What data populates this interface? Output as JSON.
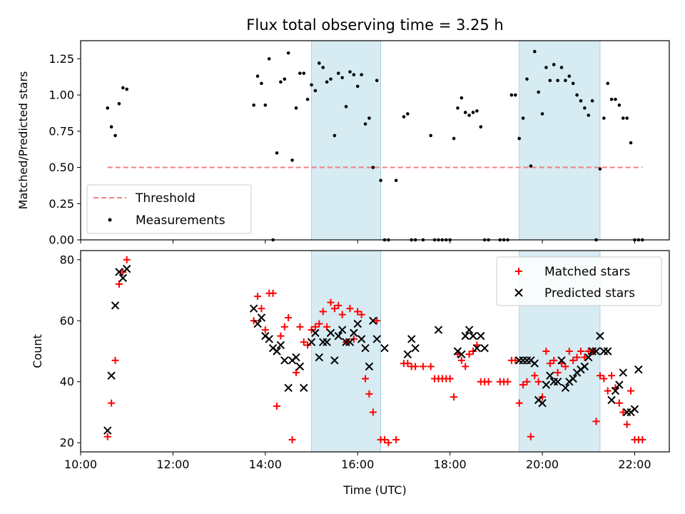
{
  "chart_data": [
    {
      "type": "scatter",
      "title": "Flux total observing time = 3.25 h",
      "xlabel": "",
      "ylabel": "Matched/Predicted stars",
      "xlim": [
        "10:00",
        "22:45"
      ],
      "ylim": [
        0,
        1.375
      ],
      "xticks": [
        "10:00",
        "12:00",
        "14:00",
        "16:00",
        "18:00",
        "20:00",
        "22:00"
      ],
      "yticks": [
        "0.00",
        "0.25",
        "0.50",
        "0.75",
        "1.00",
        "1.25"
      ],
      "shaded_intervals": [
        [
          "15:00",
          "16:30"
        ],
        [
          "19:30",
          "21:15"
        ]
      ],
      "legend_position": "lower-left",
      "series": [
        {
          "name": "Threshold",
          "kind": "line",
          "style": "dashed",
          "color": "#f08080",
          "x": [
            "10:35",
            "22:10"
          ],
          "y": [
            0.5,
            0.5
          ]
        },
        {
          "name": "Measurements",
          "kind": "scatter",
          "marker": "dot",
          "color": "#000000",
          "x": [
            "10:35",
            "10:40",
            "10:45",
            "10:50",
            "10:55",
            "11:00",
            "13:45",
            "13:50",
            "13:55",
            "14:00",
            "14:05",
            "14:10",
            "14:15",
            "14:20",
            "14:25",
            "14:30",
            "14:35",
            "14:40",
            "14:45",
            "14:50",
            "14:55",
            "15:00",
            "15:05",
            "15:10",
            "15:15",
            "15:20",
            "15:25",
            "15:30",
            "15:35",
            "15:40",
            "15:45",
            "15:50",
            "15:55",
            "16:00",
            "16:05",
            "16:10",
            "16:15",
            "16:20",
            "16:25",
            "16:30",
            "16:35",
            "16:40",
            "16:50",
            "17:00",
            "17:05",
            "17:10",
            "17:15",
            "17:25",
            "17:35",
            "17:40",
            "17:45",
            "17:50",
            "17:55",
            "18:00",
            "18:05",
            "18:10",
            "18:15",
            "18:20",
            "18:25",
            "18:30",
            "18:35",
            "18:40",
            "18:45",
            "18:50",
            "19:05",
            "19:10",
            "19:15",
            "19:20",
            "19:25",
            "19:30",
            "19:35",
            "19:40",
            "19:45",
            "19:50",
            "19:55",
            "20:00",
            "20:05",
            "20:10",
            "20:15",
            "20:20",
            "20:25",
            "20:30",
            "20:35",
            "20:40",
            "20:45",
            "20:50",
            "20:55",
            "21:00",
            "21:05",
            "21:10",
            "21:15",
            "21:20",
            "21:25",
            "21:30",
            "21:35",
            "21:40",
            "21:45",
            "21:50",
            "21:55",
            "22:00",
            "22:05",
            "22:10"
          ],
          "y": [
            0.91,
            0.78,
            0.72,
            0.94,
            1.05,
            1.04,
            0.93,
            1.13,
            1.08,
            0.93,
            1.25,
            0.0,
            0.6,
            1.09,
            1.11,
            1.29,
            0.55,
            0.91,
            1.15,
            1.15,
            0.97,
            1.07,
            1.03,
            1.22,
            1.19,
            1.09,
            1.11,
            0.72,
            1.15,
            1.12,
            0.92,
            1.16,
            1.14,
            1.06,
            1.14,
            0.8,
            0.84,
            0.5,
            1.1,
            0.41,
            0.0,
            0.0,
            0.41,
            0.85,
            0.87,
            0.0,
            0.0,
            0.0,
            0.72,
            0.0,
            0.0,
            0.0,
            0.0,
            0.0,
            0.7,
            0.91,
            0.98,
            0.88,
            0.86,
            0.88,
            0.89,
            0.78,
            0.0,
            0.0,
            0.0,
            0.0,
            0.0,
            1.0,
            1.0,
            0.7,
            0.84,
            1.11,
            0.51,
            1.3,
            1.02,
            0.87,
            1.19,
            1.1,
            1.21,
            1.1,
            1.19,
            1.1,
            1.13,
            1.08,
            1.0,
            0.96,
            0.91,
            0.86,
            0.96,
            0.0,
            0.49,
            0.84,
            1.08,
            0.97,
            0.97,
            0.93,
            0.84,
            0.84,
            0.67,
            0.0,
            0.0,
            0.0
          ]
        }
      ]
    },
    {
      "type": "scatter",
      "title": "",
      "xlabel": "Time (UTC)",
      "ylabel": "Count",
      "xlim": [
        "10:00",
        "22:45"
      ],
      "ylim": [
        17,
        83
      ],
      "xticks": [
        "10:00",
        "12:00",
        "14:00",
        "16:00",
        "18:00",
        "20:00",
        "22:00"
      ],
      "yticks": [
        "20",
        "40",
        "60",
        "80"
      ],
      "shaded_intervals": [
        [
          "15:00",
          "16:30"
        ],
        [
          "19:30",
          "21:15"
        ]
      ],
      "legend_position": "upper-right",
      "series": [
        {
          "name": "Matched stars",
          "kind": "scatter",
          "marker": "plus",
          "color": "#ff0000",
          "x": [
            "10:35",
            "10:40",
            "10:45",
            "10:50",
            "10:55",
            "11:00",
            "13:45",
            "13:50",
            "13:55",
            "14:00",
            "14:05",
            "14:10",
            "14:15",
            "14:20",
            "14:25",
            "14:30",
            "14:35",
            "14:40",
            "14:45",
            "14:50",
            "14:55",
            "15:00",
            "15:05",
            "15:10",
            "15:15",
            "15:20",
            "15:25",
            "15:30",
            "15:35",
            "15:40",
            "15:45",
            "15:50",
            "15:55",
            "16:00",
            "16:05",
            "16:10",
            "16:15",
            "16:20",
            "16:25",
            "16:30",
            "16:35",
            "16:40",
            "16:50",
            "17:00",
            "17:05",
            "17:10",
            "17:15",
            "17:25",
            "17:35",
            "17:40",
            "17:45",
            "17:50",
            "17:55",
            "18:00",
            "18:05",
            "18:10",
            "18:15",
            "18:20",
            "18:25",
            "18:30",
            "18:35",
            "18:40",
            "18:45",
            "18:50",
            "19:05",
            "19:10",
            "19:15",
            "19:20",
            "19:25",
            "19:30",
            "19:35",
            "19:40",
            "19:45",
            "19:50",
            "19:55",
            "20:00",
            "20:05",
            "20:10",
            "20:15",
            "20:20",
            "20:25",
            "20:30",
            "20:35",
            "20:40",
            "20:45",
            "20:50",
            "20:55",
            "21:00",
            "21:05",
            "21:10",
            "21:15",
            "21:20",
            "21:25",
            "21:30",
            "21:35",
            "21:40",
            "21:45",
            "21:50",
            "21:55",
            "22:00",
            "22:05",
            "22:10"
          ],
          "y": [
            22,
            33,
            47,
            72,
            76,
            80,
            60,
            68,
            64,
            57,
            69,
            69,
            32,
            55,
            58,
            61,
            21,
            43,
            58,
            53,
            52,
            57,
            58,
            59,
            63,
            58,
            66,
            64,
            65,
            62,
            53,
            64,
            54,
            63,
            62,
            41,
            36,
            30,
            60,
            21,
            21,
            20,
            21,
            46,
            46,
            45,
            45,
            45,
            45,
            41,
            41,
            41,
            41,
            41,
            35,
            49,
            47,
            45,
            49,
            50,
            52,
            40,
            40,
            40,
            40,
            40,
            40,
            47,
            47,
            33,
            39,
            40,
            22,
            42,
            40,
            35,
            50,
            46,
            47,
            43,
            46,
            45,
            50,
            47,
            48,
            50,
            48,
            50,
            50,
            27,
            42,
            41,
            37,
            42,
            38,
            33,
            30,
            26,
            37,
            21,
            21,
            21
          ]
        },
        {
          "name": "Predicted stars",
          "kind": "scatter",
          "marker": "x",
          "color": "#000000",
          "x": [
            "10:35",
            "10:40",
            "10:45",
            "10:50",
            "10:55",
            "11:00",
            "13:45",
            "13:50",
            "13:55",
            "14:00",
            "14:05",
            "14:10",
            "14:15",
            "14:20",
            "14:25",
            "14:30",
            "14:35",
            "14:40",
            "14:45",
            "14:50",
            "15:00",
            "15:05",
            "15:10",
            "15:15",
            "15:20",
            "15:25",
            "15:30",
            "15:35",
            "15:40",
            "15:45",
            "15:50",
            "15:55",
            "16:00",
            "16:05",
            "16:10",
            "16:15",
            "16:20",
            "16:25",
            "16:35",
            "17:05",
            "17:10",
            "17:15",
            "17:45",
            "18:10",
            "18:15",
            "18:20",
            "18:25",
            "18:30",
            "18:35",
            "18:40",
            "18:45",
            "19:30",
            "19:35",
            "19:40",
            "19:45",
            "19:50",
            "19:55",
            "20:00",
            "20:05",
            "20:10",
            "20:15",
            "20:20",
            "20:25",
            "20:30",
            "20:35",
            "20:40",
            "20:45",
            "20:50",
            "20:55",
            "21:00",
            "21:05",
            "21:10",
            "21:15",
            "21:20",
            "21:25",
            "21:30",
            "21:35",
            "21:40",
            "21:45",
            "21:50",
            "21:55",
            "22:00",
            "22:05"
          ],
          "y": [
            24,
            42,
            65,
            76,
            74,
            77,
            64,
            59,
            61,
            55,
            54,
            51,
            50,
            52,
            47,
            38,
            47,
            48,
            45,
            38,
            53,
            56,
            48,
            53,
            53,
            56,
            47,
            55,
            57,
            53,
            53,
            56,
            59,
            54,
            51,
            45,
            60,
            54,
            51,
            49,
            54,
            51,
            57,
            50,
            49,
            55,
            57,
            55,
            51,
            55,
            51,
            47,
            47,
            47,
            47,
            46,
            34,
            33,
            39,
            42,
            40,
            40,
            47,
            38,
            40,
            41,
            43,
            44,
            45,
            48,
            50,
            50,
            55,
            50,
            50,
            34,
            37,
            39,
            43,
            30,
            30,
            31,
            44
          ]
        }
      ]
    }
  ]
}
